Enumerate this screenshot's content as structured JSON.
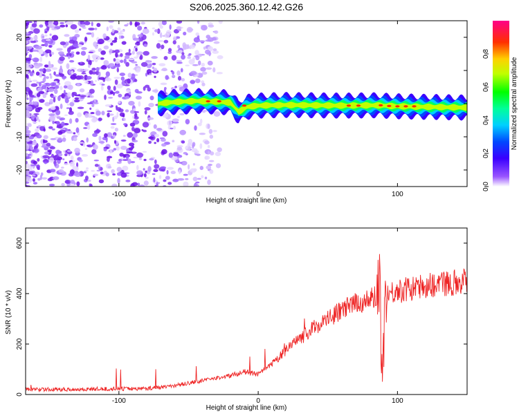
{
  "title": "S206.2025.360.12.42.G26",
  "chart_data": [
    {
      "type": "heatmap",
      "xlabel": "Height of straight line (km)",
      "ylabel": "Frequency (Hz)",
      "xlim": [
        -167,
        150
      ],
      "ylim": [
        -25,
        25
      ],
      "xticks": [
        -100,
        0,
        100
      ],
      "yticks": [
        -20,
        -10,
        0,
        10,
        20
      ],
      "colorbar": {
        "label": "Normalized spectral amplitude",
        "range": [
          0,
          1
        ],
        "ticks": [
          "0.0",
          "0.2",
          "0.4",
          "0.6",
          "0.8"
        ]
      },
      "signal_track": [
        {
          "x": -72,
          "f": 0
        },
        {
          "x": -60,
          "f": 0.5
        },
        {
          "x": -45,
          "f": 0.8
        },
        {
          "x": -30,
          "f": 0.6
        },
        {
          "x": -20,
          "f": 0.3
        },
        {
          "x": -14,
          "f": -2.5
        },
        {
          "x": -8,
          "f": -1
        },
        {
          "x": 0,
          "f": -0.6
        },
        {
          "x": 20,
          "f": -0.4
        },
        {
          "x": 40,
          "f": -0.5
        },
        {
          "x": 60,
          "f": -0.6
        },
        {
          "x": 85,
          "f": -0.5
        },
        {
          "x": 100,
          "f": -0.8
        },
        {
          "x": 150,
          "f": -1.2
        }
      ]
    },
    {
      "type": "line",
      "xlabel": "Height of straight line (km)",
      "ylabel": "SNR (10 * v/v)",
      "xlim": [
        -167,
        150
      ],
      "ylim": [
        0,
        660
      ],
      "xticks": [
        -100,
        0,
        100
      ],
      "yticks": [
        0,
        200,
        400,
        600
      ],
      "color": "#ee2222",
      "series": [
        {
          "name": "SNR",
          "x": [
            -167,
            -140,
            -110,
            -80,
            -60,
            -40,
            -20,
            -10,
            0,
            10,
            20,
            30,
            40,
            50,
            60,
            70,
            80,
            85,
            87,
            89,
            92,
            100,
            110,
            120,
            130,
            140,
            150
          ],
          "y": [
            20,
            20,
            22,
            24,
            35,
            55,
            75,
            90,
            80,
            120,
            175,
            220,
            265,
            300,
            335,
            360,
            375,
            390,
            460,
            150,
            400,
            410,
            420,
            430,
            440,
            445,
            455
          ]
        }
      ]
    }
  ]
}
